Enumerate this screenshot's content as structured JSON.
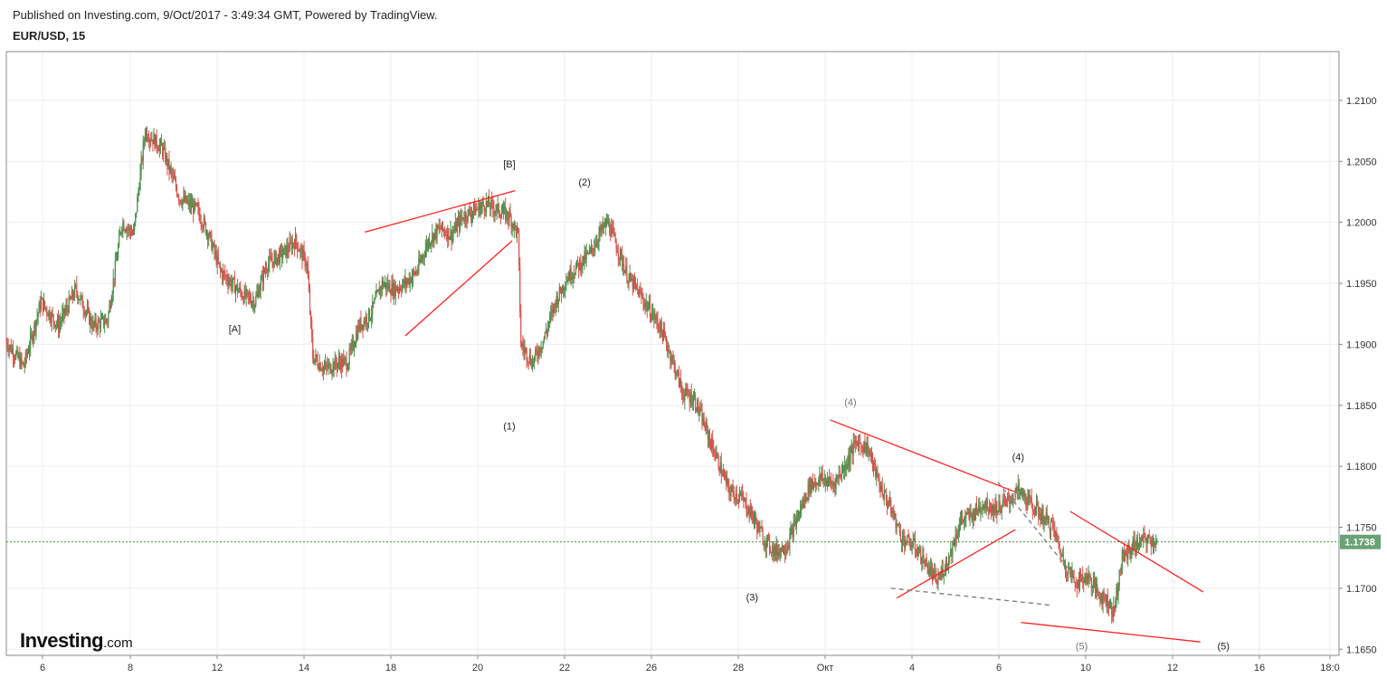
{
  "header": {
    "published": "Published on Investing.com, 9/Oct/2017 - 3:49:34 GMT, Powered by TradingView.",
    "symbol": "EUR/USD, 15"
  },
  "logo": {
    "name": "Investing",
    "suffix": ".com"
  },
  "chart_data": {
    "type": "candlestick",
    "instrument": "EUR/USD",
    "timeframe": "15",
    "y_ticks": [
      "1.2100",
      "1.2050",
      "1.2000",
      "1.1950",
      "1.1900",
      "1.1850",
      "1.1800",
      "1.1750",
      "1.1700",
      "1.1650"
    ],
    "ylim": [
      1.1645,
      1.214
    ],
    "x_ticks": [
      "6",
      "8",
      "12",
      "14",
      "18",
      "20",
      "22",
      "26",
      "28",
      "Окт",
      "4",
      "6",
      "10",
      "12",
      "16",
      "18:0"
    ],
    "last_price": "1.1738",
    "last_price_value": 1.1738,
    "colors": {
      "up": "#4a8f4a",
      "down": "#d9534f",
      "annotation_line": "#ff2020",
      "dashed_line": "#777777",
      "price_label_bg": "#6aa274",
      "grid": "#eeeeee"
    },
    "price_path_approx": [
      [
        0,
        1.1902
      ],
      [
        6,
        1.1882
      ],
      [
        12,
        1.1935
      ],
      [
        18,
        1.1915
      ],
      [
        24,
        1.1945
      ],
      [
        30,
        1.1915
      ],
      [
        35,
        1.192
      ],
      [
        40,
        1.2
      ],
      [
        44,
        1.199
      ],
      [
        48,
        1.2075
      ],
      [
        54,
        1.206
      ],
      [
        60,
        1.202
      ],
      [
        66,
        1.201
      ],
      [
        70,
        1.199
      ],
      [
        74,
        1.196
      ],
      [
        78,
        1.195
      ],
      [
        82,
        1.194
      ],
      [
        86,
        1.1935
      ],
      [
        90,
        1.1965
      ],
      [
        96,
        1.1975
      ],
      [
        100,
        1.1985
      ],
      [
        104,
        1.1965
      ],
      [
        106,
        1.189
      ],
      [
        110,
        1.188
      ],
      [
        115,
        1.1885
      ],
      [
        118,
        1.1885
      ],
      [
        122,
        1.1915
      ],
      [
        126,
        1.1925
      ],
      [
        130,
        1.195
      ],
      [
        134,
        1.1945
      ],
      [
        138,
        1.195
      ],
      [
        142,
        1.196
      ],
      [
        146,
        1.1985
      ],
      [
        150,
        1.1995
      ],
      [
        154,
        1.199
      ],
      [
        158,
        1.2005
      ],
      [
        162,
        1.201
      ],
      [
        166,
        1.2015
      ],
      [
        170,
        1.201
      ],
      [
        174,
        1.2005
      ],
      [
        177,
        1.199
      ],
      [
        178,
        1.19
      ],
      [
        182,
        1.1885
      ],
      [
        186,
        1.1905
      ],
      [
        190,
        1.1935
      ],
      [
        194,
        1.1955
      ],
      [
        198,
        1.1965
      ],
      [
        202,
        1.1975
      ],
      [
        205,
        1.199
      ],
      [
        208,
        1.2
      ],
      [
        212,
        1.1975
      ],
      [
        215,
        1.1955
      ],
      [
        218,
        1.1945
      ],
      [
        222,
        1.193
      ],
      [
        226,
        1.1915
      ],
      [
        230,
        1.189
      ],
      [
        234,
        1.186
      ],
      [
        238,
        1.1855
      ],
      [
        242,
        1.183
      ],
      [
        246,
        1.1805
      ],
      [
        250,
        1.178
      ],
      [
        254,
        1.1775
      ],
      [
        258,
        1.176
      ],
      [
        262,
        1.174
      ],
      [
        266,
        1.173
      ],
      [
        270,
        1.1735
      ],
      [
        274,
        1.176
      ],
      [
        278,
        1.1785
      ],
      [
        282,
        1.179
      ],
      [
        286,
        1.1785
      ],
      [
        290,
        1.18
      ],
      [
        294,
        1.182
      ],
      [
        298,
        1.1815
      ],
      [
        302,
        1.1785
      ],
      [
        306,
        1.1765
      ],
      [
        310,
        1.174
      ],
      [
        314,
        1.1735
      ],
      [
        318,
        1.172
      ],
      [
        322,
        1.1705
      ],
      [
        326,
        1.1725
      ],
      [
        330,
        1.1755
      ],
      [
        334,
        1.176
      ],
      [
        338,
        1.177
      ],
      [
        342,
        1.1765
      ],
      [
        346,
        1.177
      ],
      [
        350,
        1.178
      ],
      [
        354,
        1.177
      ],
      [
        358,
        1.176
      ],
      [
        362,
        1.175
      ],
      [
        366,
        1.172
      ],
      [
        370,
        1.1705
      ],
      [
        374,
        1.171
      ],
      [
        378,
        1.1695
      ],
      [
        381,
        1.169
      ],
      [
        383,
        1.168
      ],
      [
        386,
        1.1725
      ],
      [
        390,
        1.1735
      ],
      [
        394,
        1.174
      ],
      [
        398,
        1.1738
      ]
    ],
    "annotations": [
      {
        "label": "[A]",
        "x": 79,
        "y": 1.191
      },
      {
        "label": "[B]",
        "x": 174,
        "y": 1.2045
      },
      {
        "label": "(1)",
        "x": 174,
        "y": 1.183
      },
      {
        "label": "(2)",
        "x": 200,
        "y": 1.203
      },
      {
        "label": "(3)",
        "x": 258,
        "y": 1.169
      },
      {
        "label": "(4)",
        "x": 292,
        "y": 1.185,
        "gray": true
      },
      {
        "label": "(4)",
        "x": 350,
        "y": 1.1805
      },
      {
        "label": "(5)",
        "x": 372,
        "y": 1.165,
        "gray": true
      },
      {
        "label": "(5)",
        "x": 421,
        "y": 1.165
      }
    ],
    "trendlines": [
      {
        "x1": 124,
        "y1": 1.1992,
        "x2": 176,
        "y2": 1.2026,
        "style": "solid"
      },
      {
        "x1": 138,
        "y1": 1.1907,
        "x2": 175,
        "y2": 1.1985,
        "style": "solid"
      },
      {
        "x1": 285,
        "y1": 1.1838,
        "x2": 349,
        "y2": 1.1779,
        "style": "solid"
      },
      {
        "x1": 308,
        "y1": 1.1692,
        "x2": 349,
        "y2": 1.1748,
        "style": "solid"
      },
      {
        "x1": 343,
        "y1": 1.1787,
        "x2": 367,
        "y2": 1.1717,
        "style": "dashed"
      },
      {
        "x1": 306,
        "y1": 1.17,
        "x2": 362,
        "y2": 1.1686,
        "style": "dashed"
      },
      {
        "x1": 368,
        "y1": 1.1763,
        "x2": 414,
        "y2": 1.1697,
        "style": "solid"
      },
      {
        "x1": 351,
        "y1": 1.1672,
        "x2": 413,
        "y2": 1.1656,
        "style": "solid"
      }
    ],
    "x_domain": [
      0,
      461
    ]
  }
}
